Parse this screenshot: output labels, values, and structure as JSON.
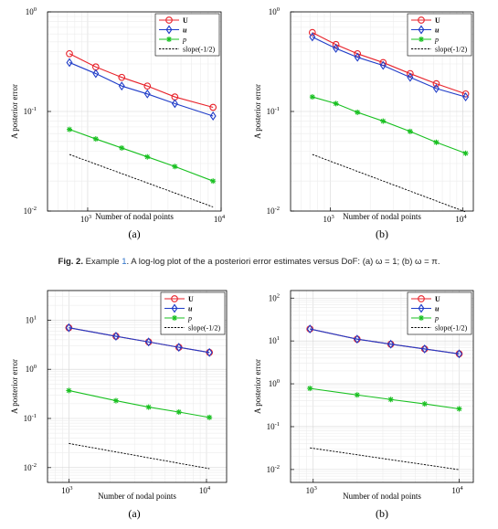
{
  "caption": {
    "label": "Fig. 2.",
    "pre": "Example",
    "ref": "1",
    "post": ". A log-log plot of the a posteriori error estimates versus DoF: (a) ω = 1; (b) ω = π."
  },
  "colors": {
    "U": "#e8222a",
    "u": "#1f3cc8",
    "p": "#18c020",
    "slope": "#000000"
  },
  "chart_data": [
    {
      "type": "line",
      "panel_label": "(a)",
      "xlabel": "Number of nodal points",
      "ylabel": "A posterior error",
      "xscale": "log",
      "yscale": "log",
      "xlim": [
        500,
        10000
      ],
      "ylim": [
        0.01,
        1
      ],
      "xticks": [
        {
          "v": 1000,
          "b": "10",
          "e": "3"
        },
        {
          "v": 10000,
          "b": "10",
          "e": "4"
        }
      ],
      "yticks": [
        {
          "v": 0.01,
          "b": "10",
          "e": "-2"
        },
        {
          "v": 0.1,
          "b": "10",
          "e": "-1"
        },
        {
          "v": 1,
          "b": "10",
          "e": "0"
        }
      ],
      "grid": true,
      "legend_position": "top-right",
      "series": [
        {
          "key": "U",
          "name": "U",
          "bold": true,
          "italic": false,
          "marker": "circle",
          "x": [
            730,
            1150,
            1800,
            2800,
            4500,
            8700
          ],
          "y": [
            0.38,
            0.28,
            0.22,
            0.18,
            0.14,
            0.11
          ]
        },
        {
          "key": "u",
          "name": "u",
          "bold": true,
          "italic": true,
          "marker": "diamond",
          "x": [
            730,
            1150,
            1800,
            2800,
            4500,
            8700
          ],
          "y": [
            0.31,
            0.24,
            0.18,
            0.15,
            0.12,
            0.09
          ]
        },
        {
          "key": "p",
          "name": "p",
          "bold": false,
          "italic": true,
          "marker": "star",
          "x": [
            730,
            1150,
            1800,
            2800,
            4500,
            8700
          ],
          "y": [
            0.066,
            0.053,
            0.043,
            0.035,
            0.028,
            0.02
          ]
        },
        {
          "key": "slope",
          "name": "slope(-1/2)",
          "bold": false,
          "italic": false,
          "marker": "none",
          "dashed": true,
          "x": [
            730,
            8700
          ],
          "y": [
            0.037,
            0.011
          ]
        }
      ]
    },
    {
      "type": "line",
      "panel_label": "(b)",
      "xlabel": "Number of nodal points",
      "ylabel": "A posterior error",
      "xscale": "log",
      "yscale": "log",
      "xlim": [
        500,
        12000
      ],
      "ylim": [
        0.01,
        1
      ],
      "xticks": [
        {
          "v": 1000,
          "b": "10",
          "e": "3"
        },
        {
          "v": 10000,
          "b": "10",
          "e": "4"
        }
      ],
      "yticks": [
        {
          "v": 0.01,
          "b": "10",
          "e": "-2"
        },
        {
          "v": 0.1,
          "b": "10",
          "e": "-1"
        },
        {
          "v": 1,
          "b": "10",
          "e": "0"
        }
      ],
      "grid": true,
      "legend_position": "top-right",
      "series": [
        {
          "key": "U",
          "name": "U",
          "bold": true,
          "italic": false,
          "marker": "circle",
          "x": [
            730,
            1100,
            1600,
            2500,
            4000,
            6300,
            10500
          ],
          "y": [
            0.62,
            0.47,
            0.38,
            0.31,
            0.24,
            0.19,
            0.15
          ]
        },
        {
          "key": "u",
          "name": "u",
          "bold": true,
          "italic": true,
          "marker": "diamond",
          "x": [
            730,
            1100,
            1600,
            2500,
            4000,
            6300,
            10500
          ],
          "y": [
            0.56,
            0.43,
            0.35,
            0.29,
            0.22,
            0.17,
            0.14
          ]
        },
        {
          "key": "p",
          "name": "p",
          "bold": false,
          "italic": true,
          "marker": "star",
          "x": [
            730,
            1100,
            1600,
            2500,
            4000,
            6300,
            10500
          ],
          "y": [
            0.14,
            0.12,
            0.098,
            0.08,
            0.063,
            0.049,
            0.038
          ]
        },
        {
          "key": "slope",
          "name": "slope(-1/2)",
          "bold": false,
          "italic": false,
          "marker": "none",
          "dashed": true,
          "x": [
            730,
            10500
          ],
          "y": [
            0.037,
            0.0098
          ]
        }
      ]
    },
    {
      "type": "line",
      "panel_label": "(a)",
      "xlabel": "Number of nodal points",
      "ylabel": "A posterior error",
      "xscale": "log",
      "yscale": "log",
      "xlim": [
        700,
        14000
      ],
      "ylim": [
        0.005,
        40
      ],
      "xticks": [
        {
          "v": 1000,
          "b": "10",
          "e": "3"
        },
        {
          "v": 10000,
          "b": "10",
          "e": "4"
        }
      ],
      "yticks": [
        {
          "v": 0.01,
          "b": "10",
          "e": "-2"
        },
        {
          "v": 0.1,
          "b": "10",
          "e": "-1"
        },
        {
          "v": 1,
          "b": "10",
          "e": "0"
        },
        {
          "v": 10,
          "b": "10",
          "e": "1"
        }
      ],
      "grid": true,
      "legend_position": "top-right",
      "series": [
        {
          "key": "U",
          "name": "U",
          "bold": true,
          "italic": false,
          "marker": "circle",
          "x": [
            1000,
            2200,
            3800,
            6300,
            10500
          ],
          "y": [
            7.0,
            4.7,
            3.6,
            2.8,
            2.2
          ]
        },
        {
          "key": "u",
          "name": "u",
          "bold": true,
          "italic": true,
          "marker": "diamond",
          "x": [
            1000,
            2200,
            3800,
            6300,
            10500
          ],
          "y": [
            7.0,
            4.7,
            3.6,
            2.8,
            2.2
          ]
        },
        {
          "key": "p",
          "name": "p",
          "bold": false,
          "italic": true,
          "marker": "star",
          "x": [
            1000,
            2200,
            3800,
            6300,
            10500
          ],
          "y": [
            0.37,
            0.23,
            0.17,
            0.135,
            0.105
          ]
        },
        {
          "key": "slope",
          "name": "slope(-1/2)",
          "bold": false,
          "italic": false,
          "marker": "none",
          "dashed": true,
          "x": [
            1000,
            10500
          ],
          "y": [
            0.031,
            0.0095
          ]
        }
      ]
    },
    {
      "type": "line",
      "panel_label": "(b)",
      "xlabel": "Number of nodal points",
      "ylabel": "A posterior error",
      "xscale": "log",
      "yscale": "log",
      "xlim": [
        700,
        12500
      ],
      "ylim": [
        0.005,
        150
      ],
      "xticks": [
        {
          "v": 1000,
          "b": "10",
          "e": "3"
        },
        {
          "v": 10000,
          "b": "10",
          "e": "4"
        }
      ],
      "yticks": [
        {
          "v": 0.01,
          "b": "10",
          "e": "-2"
        },
        {
          "v": 0.1,
          "b": "10",
          "e": "-1"
        },
        {
          "v": 1,
          "b": "10",
          "e": "0"
        },
        {
          "v": 10,
          "b": "10",
          "e": "1"
        },
        {
          "v": 100,
          "b": "10",
          "e": "2"
        }
      ],
      "grid": true,
      "legend_position": "top-right",
      "series": [
        {
          "key": "U",
          "name": "U",
          "bold": true,
          "italic": false,
          "marker": "circle",
          "x": [
            950,
            2000,
            3400,
            5800,
            10000
          ],
          "y": [
            19,
            11,
            8.4,
            6.5,
            5.0
          ]
        },
        {
          "key": "u",
          "name": "u",
          "bold": true,
          "italic": true,
          "marker": "diamond",
          "x": [
            950,
            2000,
            3400,
            5800,
            10000
          ],
          "y": [
            19,
            11,
            8.4,
            6.5,
            5.0
          ]
        },
        {
          "key": "p",
          "name": "p",
          "bold": false,
          "italic": true,
          "marker": "star",
          "x": [
            950,
            2000,
            3400,
            5800,
            10000
          ],
          "y": [
            0.78,
            0.55,
            0.43,
            0.34,
            0.26
          ]
        },
        {
          "key": "slope",
          "name": "slope(-1/2)",
          "bold": false,
          "italic": false,
          "marker": "none",
          "dashed": true,
          "x": [
            950,
            10000
          ],
          "y": [
            0.032,
            0.0099
          ]
        }
      ]
    }
  ]
}
